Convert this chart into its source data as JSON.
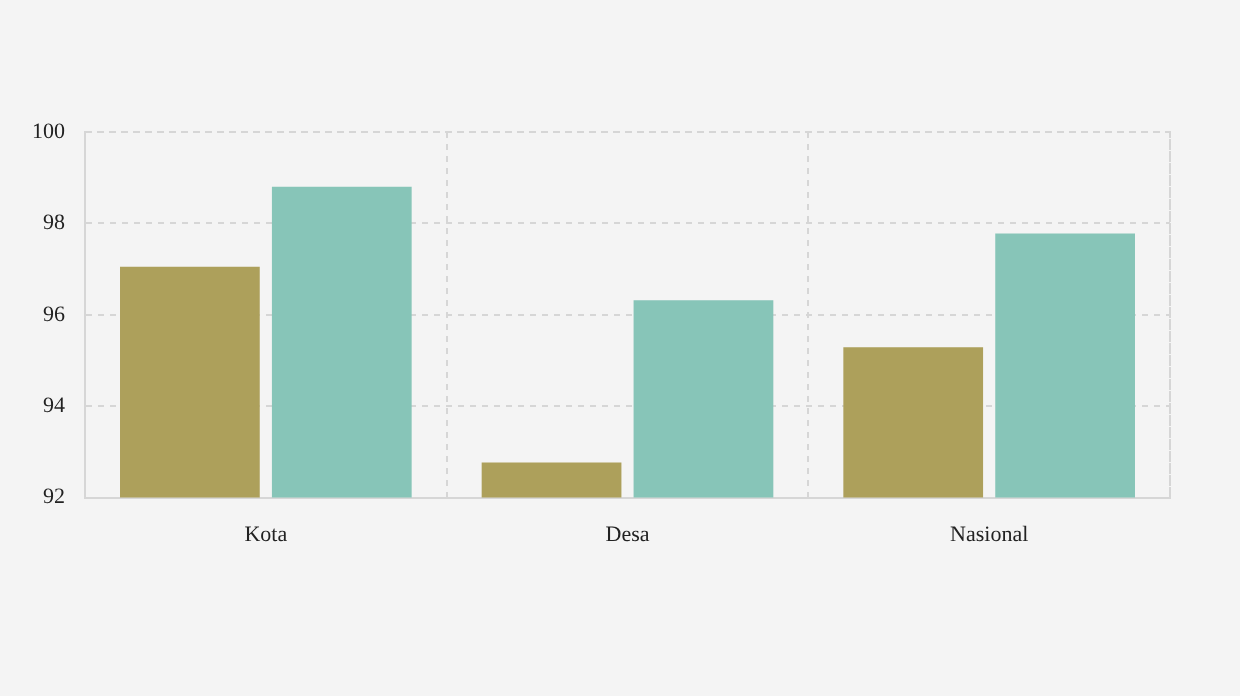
{
  "chart_data": {
    "type": "bar",
    "categories": [
      "Kota",
      "Desa",
      "Nasional"
    ],
    "series": [
      {
        "color": "#ada05b",
        "values": [
          97.05,
          92.77,
          95.29
        ]
      },
      {
        "color": "#87c5b8",
        "values": [
          98.8,
          96.32,
          97.78
        ]
      }
    ],
    "ylim": [
      92,
      100
    ],
    "yticks": [
      92,
      94,
      96,
      98,
      100
    ],
    "grid": true
  }
}
